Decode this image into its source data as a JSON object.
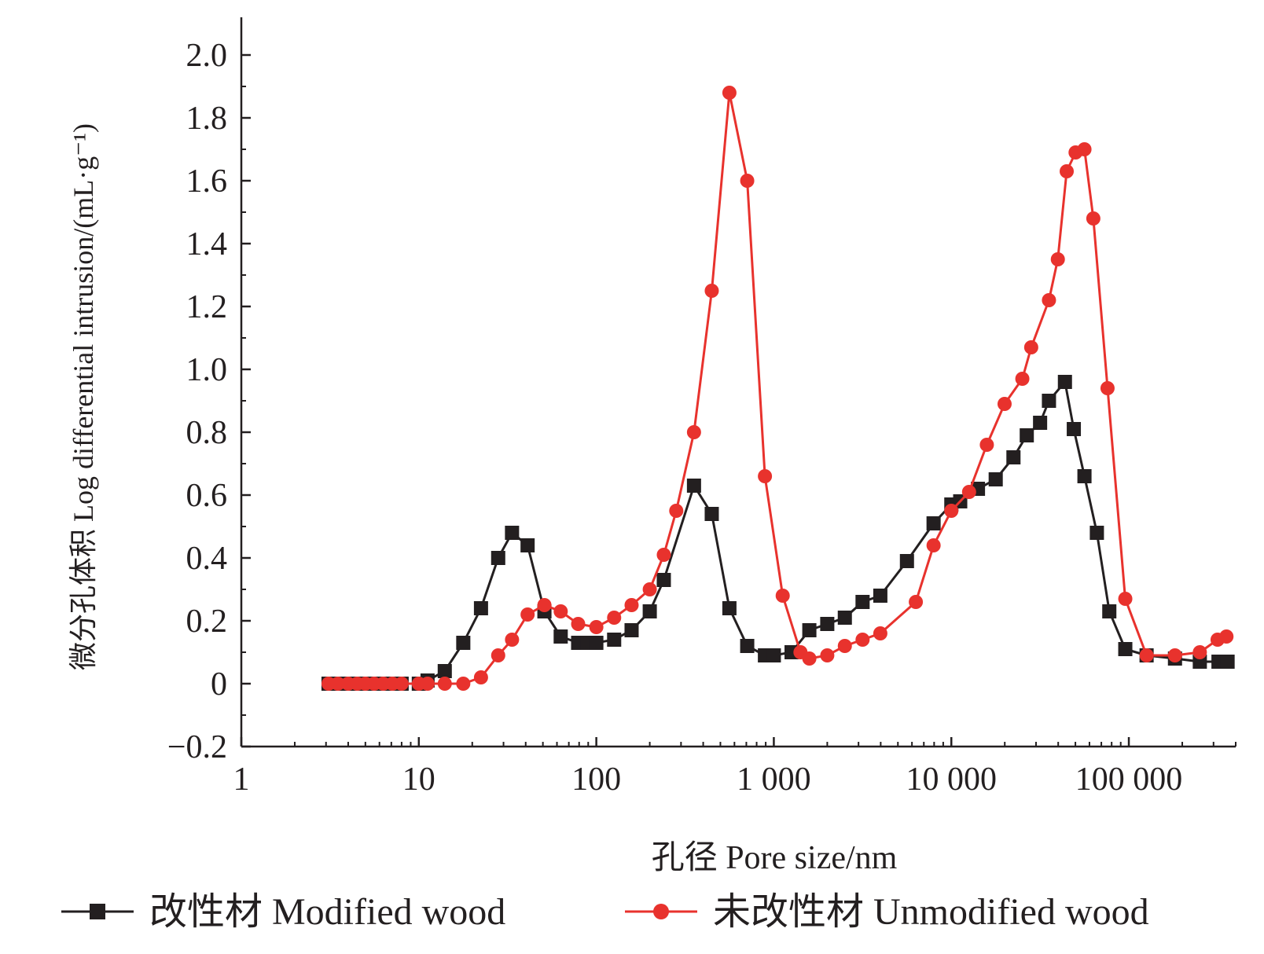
{
  "chart_data": {
    "type": "line",
    "x_scale": "log",
    "xlim": [
      1,
      400000
    ],
    "ylim": [
      -0.2,
      2.1
    ],
    "xlabel": "孔径 Pore size/nm",
    "ylabel": "微分孔体积 Log differential intrusion/(mL·g⁻¹)",
    "x_ticks": [
      {
        "value": 1,
        "label": "1"
      },
      {
        "value": 10,
        "label": "10"
      },
      {
        "value": 100,
        "label": "100"
      },
      {
        "value": 1000,
        "label": "1 000"
      },
      {
        "value": 10000,
        "label": "10 000"
      },
      {
        "value": 100000,
        "label": "100 000"
      }
    ],
    "y_ticks": [
      {
        "value": -0.2,
        "label": "−0.2"
      },
      {
        "value": 0,
        "label": "0"
      },
      {
        "value": 0.2,
        "label": "0.2"
      },
      {
        "value": 0.4,
        "label": "0.4"
      },
      {
        "value": 0.6,
        "label": "0.6"
      },
      {
        "value": 0.8,
        "label": "0.8"
      },
      {
        "value": 1.0,
        "label": "1.0"
      },
      {
        "value": 1.2,
        "label": "1.2"
      },
      {
        "value": 1.4,
        "label": "1.4"
      },
      {
        "value": 1.6,
        "label": "1.6"
      },
      {
        "value": 1.8,
        "label": "1.8"
      },
      {
        "value": 2.0,
        "label": "2.0"
      }
    ],
    "grid": false,
    "legend_position": "bottom",
    "series": [
      {
        "name": "改性材 Modified wood",
        "color": "#231f20",
        "marker": "square",
        "points": [
          [
            3.1,
            0
          ],
          [
            3.5,
            0
          ],
          [
            4,
            0
          ],
          [
            4.5,
            0
          ],
          [
            5,
            0
          ],
          [
            5.6,
            0
          ],
          [
            6.3,
            0
          ],
          [
            7.1,
            0
          ],
          [
            8,
            0
          ],
          [
            10,
            0
          ],
          [
            11.2,
            0.01
          ],
          [
            14,
            0.04
          ],
          [
            17.8,
            0.13
          ],
          [
            22.4,
            0.24
          ],
          [
            28,
            0.4
          ],
          [
            33.5,
            0.48
          ],
          [
            41,
            0.44
          ],
          [
            51,
            0.23
          ],
          [
            63,
            0.15
          ],
          [
            79,
            0.13
          ],
          [
            89,
            0.13
          ],
          [
            100,
            0.13
          ],
          [
            126,
            0.14
          ],
          [
            158,
            0.17
          ],
          [
            200,
            0.23
          ],
          [
            240,
            0.33
          ],
          [
            355,
            0.63
          ],
          [
            447,
            0.54
          ],
          [
            562,
            0.24
          ],
          [
            708,
            0.12
          ],
          [
            891,
            0.09
          ],
          [
            1000,
            0.09
          ],
          [
            1259,
            0.1
          ],
          [
            1585,
            0.17
          ],
          [
            2000,
            0.19
          ],
          [
            2512,
            0.21
          ],
          [
            3162,
            0.26
          ],
          [
            3981,
            0.28
          ],
          [
            5623,
            0.39
          ],
          [
            7943,
            0.51
          ],
          [
            10000,
            0.57
          ],
          [
            11220,
            0.58
          ],
          [
            14125,
            0.62
          ],
          [
            17783,
            0.65
          ],
          [
            22387,
            0.72
          ],
          [
            26607,
            0.79
          ],
          [
            31623,
            0.83
          ],
          [
            35481,
            0.9
          ],
          [
            43652,
            0.96
          ],
          [
            48978,
            0.81
          ],
          [
            56234,
            0.66
          ],
          [
            66069,
            0.48
          ],
          [
            77625,
            0.23
          ],
          [
            95499,
            0.11
          ],
          [
            125893,
            0.09
          ],
          [
            181970,
            0.08
          ],
          [
            251189,
            0.07
          ],
          [
            320000,
            0.07
          ],
          [
            360000,
            0.07
          ]
        ]
      },
      {
        "name": "未改性材 Unmodified wood",
        "color": "#e8322d",
        "marker": "circle",
        "points": [
          [
            3.1,
            0
          ],
          [
            3.5,
            0
          ],
          [
            4,
            0
          ],
          [
            4.5,
            0
          ],
          [
            5,
            0
          ],
          [
            5.6,
            0
          ],
          [
            6.3,
            0
          ],
          [
            7.1,
            0
          ],
          [
            8,
            0
          ],
          [
            10,
            0
          ],
          [
            11.2,
            0
          ],
          [
            14,
            0
          ],
          [
            17.8,
            0
          ],
          [
            22.4,
            0.02
          ],
          [
            28,
            0.09
          ],
          [
            33.5,
            0.14
          ],
          [
            41,
            0.22
          ],
          [
            51,
            0.25
          ],
          [
            63,
            0.23
          ],
          [
            79,
            0.19
          ],
          [
            100,
            0.18
          ],
          [
            126,
            0.21
          ],
          [
            158,
            0.25
          ],
          [
            200,
            0.3
          ],
          [
            240,
            0.41
          ],
          [
            282,
            0.55
          ],
          [
            355,
            0.8
          ],
          [
            447,
            1.25
          ],
          [
            562,
            1.88
          ],
          [
            708,
            1.6
          ],
          [
            891,
            0.66
          ],
          [
            1122,
            0.28
          ],
          [
            1413,
            0.1
          ],
          [
            1585,
            0.08
          ],
          [
            2000,
            0.09
          ],
          [
            2512,
            0.12
          ],
          [
            3162,
            0.14
          ],
          [
            3981,
            0.16
          ],
          [
            6310,
            0.26
          ],
          [
            7943,
            0.44
          ],
          [
            10000,
            0.55
          ],
          [
            12589,
            0.61
          ],
          [
            15849,
            0.76
          ],
          [
            19953,
            0.89
          ],
          [
            25119,
            0.97
          ],
          [
            28184,
            1.07
          ],
          [
            35481,
            1.22
          ],
          [
            39811,
            1.35
          ],
          [
            44668,
            1.63
          ],
          [
            50119,
            1.69
          ],
          [
            56234,
            1.7
          ],
          [
            63096,
            1.48
          ],
          [
            75858,
            0.94
          ],
          [
            95499,
            0.27
          ],
          [
            125893,
            0.09
          ],
          [
            181970,
            0.09
          ],
          [
            251189,
            0.1
          ],
          [
            316228,
            0.14
          ],
          [
            354813,
            0.15
          ]
        ]
      }
    ]
  }
}
